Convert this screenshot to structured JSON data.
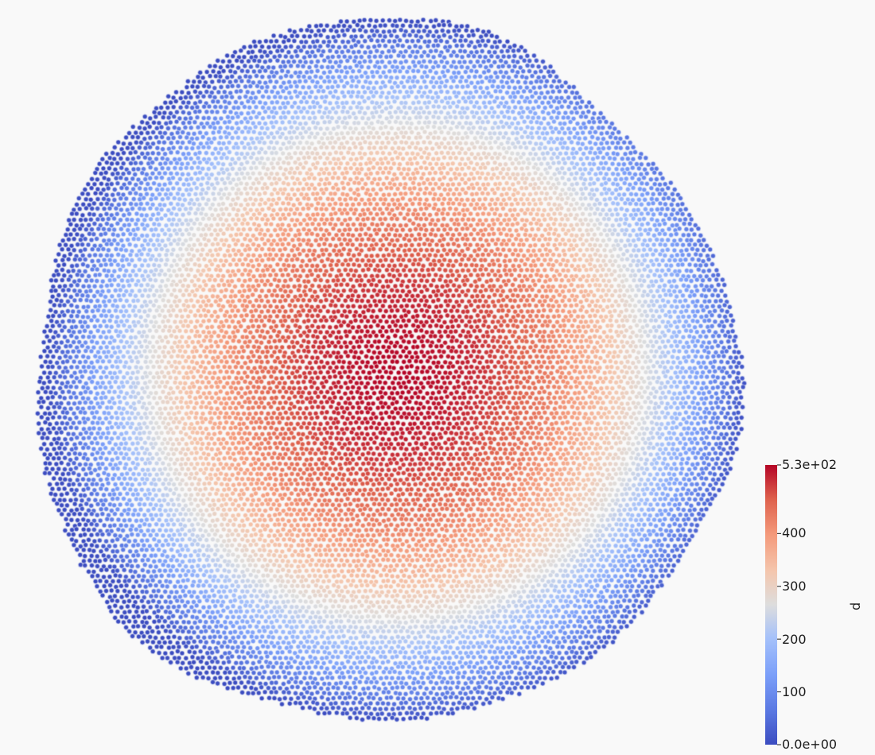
{
  "scalar_bar": {
    "title": "p",
    "range": [
      0,
      530
    ],
    "labels": {
      "max": "5.3e+02",
      "t400": "400",
      "t300": "300",
      "t200": "200",
      "t100": "100",
      "min": "0.0e+00"
    },
    "ticks": [
      0,
      100,
      200,
      300,
      400,
      530
    ],
    "colormap": "Cool to Warm",
    "colors": {
      "low": "#3b4cc0",
      "mid": "#dddddd",
      "high": "#b40426"
    }
  },
  "field": {
    "shape": "disk-of-particles",
    "peak_value": 530,
    "edge_value": 0
  },
  "colors": {
    "background": "#f9f9f9"
  }
}
